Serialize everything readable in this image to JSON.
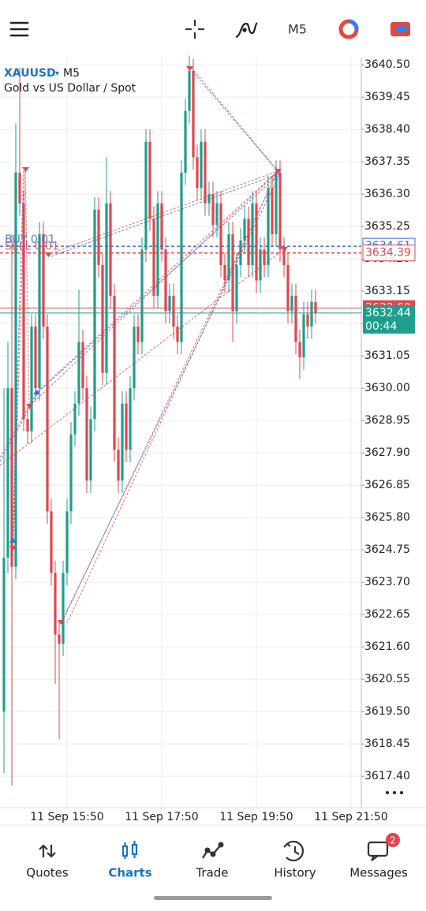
{
  "top_bar": {
    "timeframe": "M5"
  },
  "chart_data": {
    "type": "candlestick",
    "symbol": "XAUUSD",
    "symbol_arrow": "▾",
    "timeframe": "M5",
    "description": "Gold vs US Dollar / Spot",
    "up_color": "#1e9e8c",
    "down_color": "#e0474c",
    "grid": true,
    "ylim": [
      3616.38,
      3640.76
    ],
    "yticks": [
      {
        "value": 3640.5,
        "label": "3640.50"
      },
      3639.45,
      {
        "value": 3638.4,
        "label": "3638.40"
      },
      3637.35,
      {
        "value": 3636.3,
        "label": "3636.30"
      },
      3635.25,
      {
        "value": 3634.2,
        "label": "3634.20"
      },
      3633.15,
      {
        "value": 3632.1,
        "label": "3632.10"
      },
      3631.05,
      {
        "value": 3630,
        "label": "3630.00"
      },
      3628.95,
      {
        "value": 3627.9,
        "label": "3627.90"
      },
      3626.85,
      {
        "value": 3625.8,
        "label": "3625.80"
      },
      3624.75,
      {
        "value": 3623.7,
        "label": "3623.70"
      },
      3622.65,
      {
        "value": 3621.6,
        "label": "3621.60"
      },
      3620.55,
      {
        "value": 3619.5,
        "label": "3619.50"
      },
      3618.45,
      {
        "value": 3617.4,
        "label": "3617.40"
      }
    ],
    "xticks": [
      {
        "value": 16,
        "label": "11 Sep 15:50"
      },
      {
        "value": 40,
        "label": "11 Sep 17:50"
      },
      {
        "value": 64,
        "label": "11 Sep 19:50"
      },
      {
        "value": 88,
        "label": "11 Sep 21:50"
      }
    ],
    "ohlc": [
      [
        3619.5,
        3630,
        3617.5,
        3624.5
      ],
      [
        3624.5,
        3631.5,
        3624,
        3630
      ],
      [
        3630,
        3635,
        3617.1,
        3624.2
      ],
      [
        3624.2,
        3638.6,
        3623.8,
        3637
      ],
      [
        3637,
        3640.4,
        3635.6,
        3636
      ],
      [
        3636,
        3636.4,
        3628.6,
        3629
      ],
      [
        3629,
        3629.4,
        3628.2,
        3628.6
      ],
      [
        3628.6,
        3632.4,
        3628.2,
        3632
      ],
      [
        3632,
        3632.4,
        3629.6,
        3630
      ],
      [
        3630,
        3635.4,
        3629.6,
        3635
      ],
      [
        3635,
        3635.4,
        3631.6,
        3632
      ],
      [
        3632,
        3632.4,
        3625.6,
        3626
      ],
      [
        3626,
        3626.4,
        3623.6,
        3624
      ],
      [
        3624,
        3624.4,
        3620.4,
        3622
      ],
      [
        3622,
        3622.4,
        3618.6,
        3621.7
      ],
      [
        3621.7,
        3624.4,
        3621.3,
        3624
      ],
      [
        3624,
        3626.4,
        3623.6,
        3626
      ],
      [
        3626,
        3628.9,
        3625.6,
        3628.5
      ],
      [
        3628.5,
        3629.9,
        3628.1,
        3629.5
      ],
      [
        3629.5,
        3633.2,
        3629.1,
        3631.5
      ],
      [
        3631.5,
        3631.9,
        3629.6,
        3630
      ],
      [
        3630,
        3630.4,
        3626.6,
        3627
      ],
      [
        3627,
        3629.4,
        3626.6,
        3629
      ],
      [
        3629,
        3636.2,
        3628.6,
        3635.8
      ],
      [
        3635.8,
        3636.2,
        3633.6,
        3634
      ],
      [
        3634,
        3634.4,
        3630.1,
        3630.5
      ],
      [
        3630.5,
        3637.5,
        3630.1,
        3636
      ],
      [
        3636,
        3636.4,
        3632.6,
        3633
      ],
      [
        3633,
        3633.4,
        3627.6,
        3628
      ],
      [
        3628,
        3628.4,
        3626.6,
        3627
      ],
      [
        3627,
        3629.9,
        3626.6,
        3629.5
      ],
      [
        3629.5,
        3629.9,
        3627.6,
        3628
      ],
      [
        3628,
        3630.4,
        3627.6,
        3630
      ],
      [
        3630,
        3632.4,
        3629.6,
        3632
      ],
      [
        3632,
        3632.4,
        3631.1,
        3631.5
      ],
      [
        3631.5,
        3634.9,
        3631.1,
        3634.5
      ],
      [
        3634.5,
        3638.4,
        3634.1,
        3638
      ],
      [
        3638,
        3638.4,
        3635.1,
        3635.5
      ],
      [
        3635.5,
        3635.9,
        3632.6,
        3633
      ],
      [
        3633,
        3636.4,
        3632.6,
        3636
      ],
      [
        3636,
        3636.4,
        3634.1,
        3634.5
      ],
      [
        3634.5,
        3634.9,
        3632.1,
        3632.5
      ],
      [
        3632.5,
        3633.4,
        3632.1,
        3633
      ],
      [
        3633,
        3633.4,
        3631.6,
        3632
      ],
      [
        3632,
        3632.4,
        3631.1,
        3631.5
      ],
      [
        3631.5,
        3637.4,
        3631.1,
        3637
      ],
      [
        3637,
        3639.4,
        3636.6,
        3639
      ],
      [
        3639,
        3640.8,
        3638.6,
        3640.3
      ],
      [
        3640.3,
        3640.7,
        3637.1,
        3637.5
      ],
      [
        3637.5,
        3637.9,
        3636.1,
        3636.5
      ],
      [
        3636.5,
        3638.4,
        3636.1,
        3638
      ],
      [
        3638,
        3638.4,
        3635.6,
        3636
      ],
      [
        3636,
        3636.7,
        3635.6,
        3636.3
      ],
      [
        3636.3,
        3636.7,
        3634.9,
        3635.3
      ],
      [
        3635.3,
        3636.4,
        3634.9,
        3636
      ],
      [
        3636,
        3636.4,
        3633.6,
        3634
      ],
      [
        3634,
        3634.4,
        3633.1,
        3633.5
      ],
      [
        3633.5,
        3635.4,
        3633.1,
        3635
      ],
      [
        3635,
        3635.4,
        3631.5,
        3632.5
      ],
      [
        3632.5,
        3634.4,
        3632.1,
        3634
      ],
      [
        3634,
        3635.2,
        3633.6,
        3634.8
      ],
      [
        3634.8,
        3635.9,
        3634.4,
        3635.5
      ],
      [
        3635.5,
        3635.9,
        3633.6,
        3634
      ],
      [
        3634,
        3636.4,
        3633.6,
        3636
      ],
      [
        3636,
        3636.4,
        3633.1,
        3633.5
      ],
      [
        3633.5,
        3634.9,
        3633.1,
        3634.5
      ],
      [
        3634.5,
        3634.9,
        3633.6,
        3634
      ],
      [
        3634,
        3636.9,
        3633.6,
        3636.5
      ],
      [
        3636.5,
        3636.9,
        3634.6,
        3635
      ],
      [
        3635,
        3637.4,
        3634.6,
        3637
      ],
      [
        3637,
        3637.4,
        3634.1,
        3634.5
      ],
      [
        3634.5,
        3634.9,
        3633.6,
        3634
      ],
      [
        3634,
        3634.4,
        3632.1,
        3632.5
      ],
      [
        3632.5,
        3633.4,
        3632.1,
        3633
      ],
      [
        3633,
        3633.4,
        3631.1,
        3631.5
      ],
      [
        3631.5,
        3631.9,
        3630.3,
        3631
      ],
      [
        3631,
        3632.8,
        3630.6,
        3632.4
      ],
      [
        3632.4,
        3632.8,
        3631.6,
        3632
      ],
      [
        3632,
        3633.2,
        3631.6,
        3632.8
      ],
      [
        3632.8,
        3633.2,
        3632.1,
        3632.44
      ]
    ],
    "price_levels": [
      {
        "name": "BUY 0.01",
        "value": 3634.61,
        "color": "#2f6fd6"
      },
      {
        "name": "SELL 0.01",
        "value": 3634.39,
        "color": "#e0474c"
      },
      {
        "value": 3632.6,
        "label": "3632.60",
        "color": "#e0474c"
      },
      {
        "value": 3632.44,
        "color": "#1e9e8c",
        "timer": "00:44"
      }
    ]
  },
  "nav": {
    "items": [
      "Quotes",
      "Charts",
      "Trade",
      "History",
      "Messages"
    ],
    "active": 1,
    "badge": "2"
  }
}
